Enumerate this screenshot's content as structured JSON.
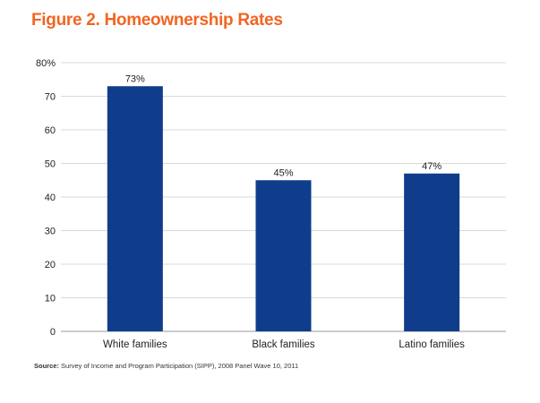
{
  "title": "Figure 2. Homeownership Rates",
  "source": {
    "label": "Source:",
    "text": "Survey of Income and Program Participation (SIPP), 2008 Panel Wave 10, 2011"
  },
  "colors": {
    "title": "#f26522",
    "bar": "#0f3d8c",
    "grid": "#d9d9d9"
  },
  "chart_data": {
    "type": "bar",
    "title": "Figure 2. Homeownership Rates",
    "xlabel": "",
    "ylabel": "",
    "categories": [
      "White families",
      "Black families",
      "Latino families"
    ],
    "values": [
      73,
      45,
      47
    ],
    "data_labels": [
      "73%",
      "45%",
      "47%"
    ],
    "ylim": [
      0,
      80
    ],
    "yticks": [
      0,
      10,
      20,
      30,
      40,
      50,
      60,
      70,
      80
    ],
    "ytick_labels": [
      "0",
      "10",
      "20",
      "30",
      "40",
      "50",
      "60",
      "70",
      "80%"
    ],
    "grid": true,
    "legend": "none"
  }
}
